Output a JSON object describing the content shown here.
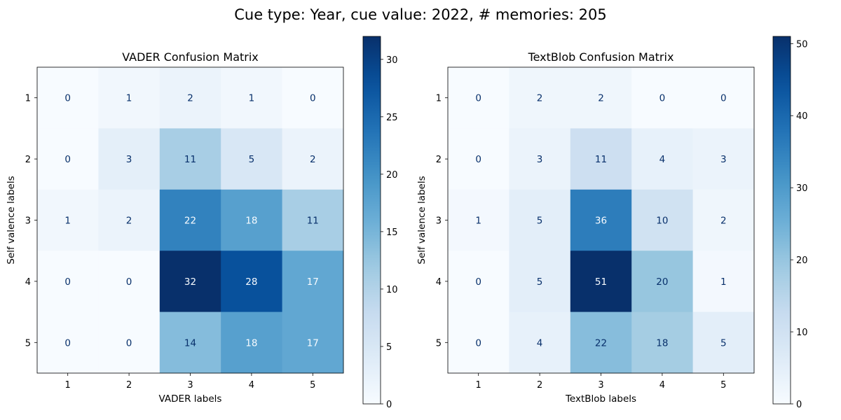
{
  "suptitle": "Cue type: Year, cue value: 2022, # memories: 205",
  "chart_data": [
    {
      "type": "heatmap",
      "title": "VADER Confusion Matrix",
      "xlabel": "VADER labels",
      "ylabel": "Self valence labels",
      "x_categories": [
        "1",
        "2",
        "3",
        "4",
        "5"
      ],
      "y_categories": [
        "1",
        "2",
        "3",
        "4",
        "5"
      ],
      "values": [
        [
          0,
          1,
          2,
          1,
          0
        ],
        [
          0,
          3,
          11,
          5,
          2
        ],
        [
          1,
          2,
          22,
          18,
          11
        ],
        [
          0,
          0,
          32,
          28,
          17
        ],
        [
          0,
          0,
          14,
          18,
          17
        ]
      ],
      "colormap": "Blues",
      "colorbar_range": [
        0,
        32
      ],
      "colorbar_ticks": [
        0,
        5,
        10,
        15,
        20,
        25,
        30
      ]
    },
    {
      "type": "heatmap",
      "title": "TextBlob Confusion Matrix",
      "xlabel": "TextBlob labels",
      "ylabel": "Self valence labels",
      "x_categories": [
        "1",
        "2",
        "3",
        "4",
        "5"
      ],
      "y_categories": [
        "1",
        "2",
        "3",
        "4",
        "5"
      ],
      "values": [
        [
          0,
          2,
          2,
          0,
          0
        ],
        [
          0,
          3,
          11,
          4,
          3
        ],
        [
          1,
          5,
          36,
          10,
          2
        ],
        [
          0,
          5,
          51,
          20,
          1
        ],
        [
          0,
          4,
          22,
          18,
          5
        ]
      ],
      "colormap": "Blues",
      "colorbar_range": [
        0,
        51
      ],
      "colorbar_ticks": [
        0,
        10,
        20,
        30,
        40,
        50
      ]
    }
  ]
}
